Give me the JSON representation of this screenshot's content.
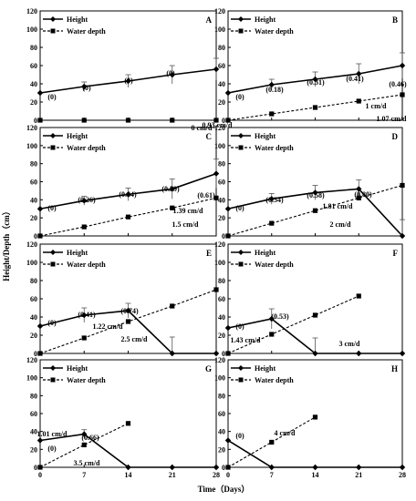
{
  "figure": {
    "ylabel": "Height/Depth（cm）",
    "xlabel": "Time（Days）"
  },
  "chart_data": [
    {
      "panel": "A",
      "type": "line",
      "x": [
        0,
        7,
        14,
        21,
        28
      ],
      "ylim": [
        0,
        120
      ],
      "xlim": [
        0,
        28
      ],
      "yticks": [
        "0",
        "20",
        "40",
        "60",
        "80",
        "100",
        "120"
      ],
      "xticks": [
        "0",
        "7",
        "14",
        "21",
        "28"
      ],
      "legend": [
        "Height",
        "Water depth"
      ],
      "series": [
        {
          "name": "Height",
          "values": [
            30,
            37,
            43,
            50,
            56
          ],
          "errors": [
            0,
            5,
            7,
            10,
            12
          ]
        },
        {
          "name": "Water depth",
          "values": [
            0,
            0,
            0,
            0,
            0
          ]
        }
      ],
      "annotations": [
        "(0)",
        "(0)",
        "(0)",
        "(0)",
        "0.93 cm/d",
        "0 cm/d"
      ]
    },
    {
      "panel": "B",
      "type": "line",
      "x": [
        0,
        7,
        14,
        21,
        28
      ],
      "ylim": [
        0,
        120
      ],
      "xlim": [
        0,
        28
      ],
      "yticks": [
        "0",
        "20",
        "40",
        "60",
        "80",
        "100",
        "120"
      ],
      "xticks": [
        "0",
        "7",
        "14",
        "21",
        "28"
      ],
      "legend": [
        "Height",
        "Water depth"
      ],
      "series": [
        {
          "name": "Height",
          "values": [
            30,
            39,
            45,
            51,
            60
          ],
          "errors": [
            0,
            6,
            8,
            11,
            14
          ]
        },
        {
          "name": "Water depth",
          "values": [
            0,
            7,
            14,
            21,
            28
          ]
        }
      ],
      "annotations": [
        "(0)",
        "(0.18)",
        "(0.31)",
        "(0.41)",
        "(0.46)",
        "1.07 cm/d",
        "1 cm/d"
      ]
    },
    {
      "panel": "C",
      "type": "line",
      "x": [
        0,
        7,
        14,
        21,
        28
      ],
      "ylim": [
        0,
        120
      ],
      "xlim": [
        0,
        28
      ],
      "yticks": [
        "0",
        "20",
        "40",
        "60",
        "80",
        "100",
        "120"
      ],
      "xticks": [
        "0",
        "7",
        "14",
        "21",
        "28"
      ],
      "legend": [
        "Height",
        "Water depth"
      ],
      "series": [
        {
          "name": "Height",
          "values": [
            30,
            39,
            46,
            52,
            69
          ],
          "errors": [
            0,
            5,
            7,
            11,
            16
          ]
        },
        {
          "name": "Water depth",
          "values": [
            0,
            10,
            21,
            31,
            42
          ]
        }
      ],
      "annotations": [
        "(0)",
        "(0.26)",
        "(0.44)",
        "(0.59)",
        "(0.61)",
        "1.39 cm/d",
        "1.5 cm/d"
      ]
    },
    {
      "panel": "D",
      "type": "line",
      "x": [
        0,
        7,
        14,
        21,
        28
      ],
      "ylim": [
        0,
        120
      ],
      "xlim": [
        0,
        28
      ],
      "yticks": [
        "0",
        "20",
        "40",
        "60",
        "80",
        "100",
        "120"
      ],
      "xticks": [
        "0",
        "7",
        "14",
        "21",
        "28"
      ],
      "legend": [
        "Height",
        "Water depth"
      ],
      "series": [
        {
          "name": "Height",
          "values": [
            30,
            41,
            48,
            52,
            0
          ],
          "errors": [
            0,
            6,
            8,
            10,
            18
          ]
        },
        {
          "name": "Water depth",
          "values": [
            0,
            14,
            28,
            42,
            56
          ]
        }
      ],
      "annotations": [
        "(0)",
        "(0.34)",
        "(0.58)",
        "(0.80)",
        "1.81 cm/d",
        "2 cm/d"
      ]
    },
    {
      "panel": "E",
      "type": "line",
      "x": [
        0,
        7,
        14,
        21,
        28
      ],
      "ylim": [
        0,
        120
      ],
      "xlim": [
        0,
        28
      ],
      "yticks": [
        "0",
        "20",
        "40",
        "60",
        "80",
        "100",
        "120"
      ],
      "xticks": [
        "0",
        "7",
        "14",
        "21",
        "28"
      ],
      "legend": [
        "Height",
        "Water depth"
      ],
      "series": [
        {
          "name": "Height",
          "values": [
            30,
            42,
            47,
            0,
            0
          ],
          "errors": [
            0,
            8,
            8,
            18,
            0
          ]
        },
        {
          "name": "Water depth",
          "values": [
            0,
            17,
            35,
            52,
            70
          ]
        }
      ],
      "annotations": [
        "(0)",
        "(0.41)",
        "(0.74)",
        "1.22 cm/d",
        "2.5 cm/d"
      ]
    },
    {
      "panel": "F",
      "type": "line",
      "x": [
        0,
        7,
        14,
        21,
        28
      ],
      "ylim": [
        0,
        120
      ],
      "xlim": [
        0,
        28
      ],
      "yticks": [
        "0",
        "20",
        "40",
        "60",
        "80",
        "100",
        "120"
      ],
      "xticks": [
        "0",
        "7",
        "14",
        "21",
        "28"
      ],
      "legend": [
        "Height",
        "Water depth"
      ],
      "series": [
        {
          "name": "Height",
          "values": [
            28,
            38,
            0,
            0,
            0
          ],
          "errors": [
            0,
            11,
            17,
            0,
            0
          ]
        },
        {
          "name": "Water depth",
          "values": [
            0,
            21,
            42,
            63,
            null
          ]
        }
      ],
      "annotations": [
        "(0)",
        "(0.53)",
        "1.43 cm/d",
        "3 cm/d"
      ]
    },
    {
      "panel": "G",
      "type": "line",
      "x": [
        0,
        7,
        14,
        21,
        28
      ],
      "ylim": [
        0,
        120
      ],
      "xlim": [
        0,
        28
      ],
      "yticks": [
        "0",
        "20",
        "40",
        "60",
        "80",
        "100",
        "120"
      ],
      "xticks": [
        "0",
        "7",
        "14",
        "21",
        "28"
      ],
      "legend": [
        "Height",
        "Water depth"
      ],
      "series": [
        {
          "name": "Height",
          "values": [
            30,
            37,
            0,
            0,
            0
          ],
          "errors": [
            0,
            5,
            0,
            0,
            0
          ]
        },
        {
          "name": "Water depth",
          "values": [
            0,
            25,
            49,
            null,
            null
          ]
        }
      ],
      "annotations": [
        "(0)",
        "(0.66)",
        "1.01 cm/d",
        "3.5 cm/d"
      ]
    },
    {
      "panel": "H",
      "type": "line",
      "x": [
        0,
        7,
        14,
        21,
        28
      ],
      "ylim": [
        0,
        120
      ],
      "xlim": [
        0,
        28
      ],
      "yticks": [
        "0",
        "20",
        "40",
        "60",
        "80",
        "100",
        "120"
      ],
      "xticks": [
        "0",
        "7",
        "14",
        "21",
        "28"
      ],
      "legend": [
        "Height",
        "Water depth"
      ],
      "series": [
        {
          "name": "Height",
          "values": [
            30,
            0,
            0,
            0,
            0
          ],
          "errors": [
            0,
            0,
            0,
            0,
            0
          ]
        },
        {
          "name": "Water depth",
          "values": [
            0,
            28,
            56,
            null,
            null
          ]
        }
      ],
      "annotations": [
        "(0)",
        "4 cm/d"
      ]
    }
  ]
}
